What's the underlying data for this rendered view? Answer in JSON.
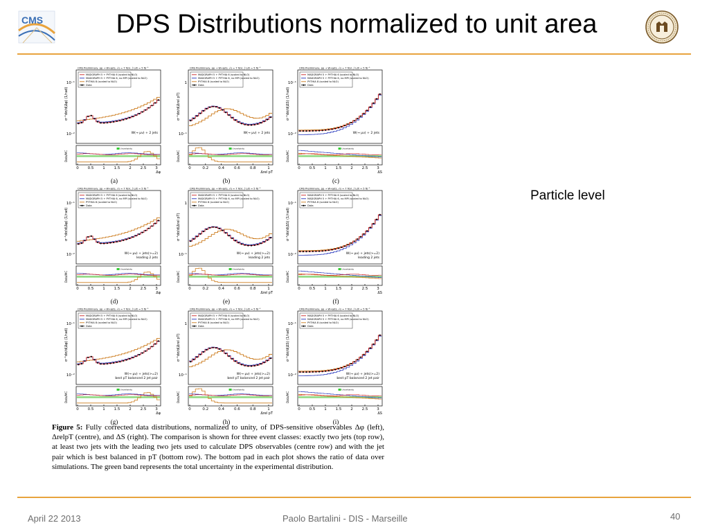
{
  "title": "DPS Distributions normalized to unit area",
  "side_note": "Particle level",
  "footer": {
    "date": "April 22 2013",
    "center": "Paolo Bartalini - DIS - Marseille",
    "page": "40"
  },
  "logos": {
    "left_text": "CMS",
    "colors": {
      "accent": "#e8a33d",
      "cms_blue": "#3a6fb5"
    }
  },
  "caption": {
    "label": "Figure 5:",
    "text": "Fully corrected data distributions, normalized to unity, of DPS-sensitive observables Δφ (left), ΔrelpT (centre), and ΔS (right). The comparison is shown for three event classes: exactly two jets (top row), at least two jets with the leading two jets used to calculate DPS observables (centre row) and with the jet pair which is best balanced in pT (bottom row). The bottom pad in each plot shows the ratio of data over simulations. The green band represents the total uncertainty in the experimental distribution."
  },
  "chart_data": [
    {
      "type": "line",
      "panel": "(a)",
      "kind": "dphi",
      "header": "CMS Preliminary,  pp → W+jets,  √s = 7 TeV,  ∫ Ldt = 5 fb⁻¹",
      "selection": "W(→ μν) + 2 jets",
      "xlabel": "Δφ",
      "ylabel": "σ⁻¹dσ/d(Δφ) (1/rad)",
      "ratio_label": "Data/MC",
      "xticks": [
        "0",
        "0.5",
        "1",
        "1.5",
        "2",
        "2.5",
        "3"
      ],
      "ymin_label": "10⁻²",
      "ymax_label": "10⁻¹",
      "legend": [
        "MADGRAPH 5 + PYTHIA 6 (scaled to NLO)",
        "MADGRAPH 5 + PYTHIA 6, no MPI (scaled to NLO)",
        "PYTHIA 8 (scaled to NLO)",
        "Data"
      ],
      "band": "Uncertainty"
    },
    {
      "type": "line",
      "panel": "(b)",
      "kind": "dpt",
      "header": "CMS Preliminary,  pp → W+jets,  √s = 7 TeV,  ∫ Ldt = 5 fb⁻¹",
      "selection": "W(→ μν) + 2 jets",
      "xlabel": "Δrel pT",
      "ylabel": "σ⁻¹dσ/d(Δrel pT)",
      "ratio_label": "Data/MC",
      "xticks": [
        "0",
        "0.2",
        "0.4",
        "0.6",
        "0.8",
        "1"
      ],
      "ymin_label": "10⁻¹",
      "ymax_label": "1",
      "legend": [
        "MADGRAPH 5 + PYTHIA 6 (scaled to NLO)",
        "MADGRAPH 5 + PYTHIA 6, no MPI (scaled to NLO)",
        "PYTHIA 8 (scaled to NLO)",
        "Data"
      ],
      "band": "Uncertainty"
    },
    {
      "type": "line",
      "panel": "(c)",
      "kind": "ds",
      "header": "CMS Preliminary,  pp → W+jets,  √s = 7 TeV,  ∫ Ldt = 5 fb⁻¹",
      "selection": "W(→ μν) + 2 jets",
      "xlabel": "ΔS",
      "ylabel": "σ⁻¹dσ/d(ΔS) (1/rad)",
      "ratio_label": "Data/MC",
      "xticks": [
        "0",
        "0.5",
        "1",
        "1.5",
        "2",
        "2.5",
        "3"
      ],
      "ymin_label": "10⁻²",
      "ymax_label": "10⁻¹",
      "legend": [
        "MADGRAPH 5 + PYTHIA 6 (scaled to NLO)",
        "MADGRAPH 5 + PYTHIA 6, no MPI (scaled to NLO)",
        "PYTHIA 8 (scaled to NLO)",
        "Data"
      ],
      "band": "Uncertainty"
    },
    {
      "type": "line",
      "panel": "(d)",
      "kind": "dphi",
      "header": "CMS Preliminary,  pp → W+jets,  √s = 7 TeV,  ∫ Ldt = 5 fb⁻¹",
      "selection": "W(→ μν) + jets(>=2)",
      "selection2": "leading 2 jets",
      "xlabel": "Δφ",
      "ylabel": "σ⁻¹dσ/d(Δφ) (1/rad)",
      "ratio_label": "Data/MC",
      "xticks": [
        "0",
        "0.5",
        "1",
        "1.5",
        "2",
        "2.5",
        "3"
      ],
      "ymin_label": "10⁻²",
      "ymax_label": "10⁻¹",
      "legend": [
        "MADGRAPH 5 + PYTHIA 6 (scaled to NLO)",
        "MADGRAPH 5 + PYTHIA 6, no MPI (scaled to NLO)",
        "PYTHIA 8 (scaled to NLO)",
        "Data"
      ],
      "band": "Uncertainty"
    },
    {
      "type": "line",
      "panel": "(e)",
      "kind": "dpt",
      "header": "CMS Preliminary,  pp → W+jets,  √s = 7 TeV,  ∫ Ldt = 5 fb⁻¹",
      "selection": "W(→ μν) + jets(>=2)",
      "selection2": "leading 2 jets",
      "xlabel": "Δrel pT",
      "ylabel": "σ⁻¹dσ/d(Δrel pT)",
      "ratio_label": "Data/MC",
      "xticks": [
        "0",
        "0.2",
        "0.4",
        "0.6",
        "0.8",
        "1"
      ],
      "ymin_label": "10⁻¹",
      "ymax_label": "1",
      "legend": [
        "MADGRAPH 5 + PYTHIA 6 (scaled to NLO)",
        "MADGRAPH 5 + PYTHIA 6, no MPI (scaled to NLO)",
        "PYTHIA 8 (scaled to NLO)",
        "Data"
      ],
      "band": "Uncertainty"
    },
    {
      "type": "line",
      "panel": "(f)",
      "kind": "ds",
      "header": "CMS Preliminary,  pp → W+jets,  √s = 7 TeV,  ∫ Ldt = 5 fb⁻¹",
      "selection": "W(→ μν) + jets(>=2)",
      "selection2": "leading 2 jets",
      "xlabel": "ΔS",
      "ylabel": "σ⁻¹dσ/d(ΔS) (1/rad)",
      "ratio_label": "Data/MC",
      "xticks": [
        "0",
        "0.5",
        "1",
        "1.5",
        "2",
        "2.5",
        "3"
      ],
      "ymin_label": "10⁻²",
      "ymax_label": "10⁻¹",
      "legend": [
        "MADGRAPH 5 + PYTHIA 6 (scaled to NLO)",
        "MADGRAPH 5 + PYTHIA 6, no MPI (scaled to NLO)",
        "PYTHIA 8 (scaled to NLO)",
        "Data"
      ],
      "band": "Uncertainty"
    },
    {
      "type": "line",
      "panel": "(g)",
      "kind": "dphi",
      "header": "CMS Preliminary,  pp → W+jets,  √s = 7 TeV,  ∫ Ldt = 5 fb⁻¹",
      "selection": "W(→ μν) + jets(>=2)",
      "selection2": "best pT balanced 2 jet pair",
      "xlabel": "Δφ",
      "ylabel": "σ⁻¹dσ/d(Δφ) (1/rad)",
      "ratio_label": "Data/MC",
      "xticks": [
        "0",
        "0.5",
        "1",
        "1.5",
        "2",
        "2.5",
        "3"
      ],
      "ymin_label": "10⁻²",
      "ymax_label": "10⁻¹",
      "legend": [
        "MADGRAPH 5 + PYTHIA 6 (scaled to NLO)",
        "MADGRAPH 5 + PYTHIA 6, no MPI (scaled to NLO)",
        "PYTHIA 8 (scaled to NLO)",
        "Data"
      ],
      "band": "Uncertainty"
    },
    {
      "type": "line",
      "panel": "(h)",
      "kind": "dpt",
      "header": "CMS Preliminary,  pp → W+jets,  √s = 7 TeV,  ∫ Ldt = 5 fb⁻¹",
      "selection": "W(→ μν) + jets(>=2)",
      "selection2": "best pT balanced 2 jet pair",
      "xlabel": "Δrel pT",
      "ylabel": "σ⁻¹dσ/d(Δrel pT)",
      "ratio_label": "Data/MC",
      "xticks": [
        "0",
        "0.2",
        "0.4",
        "0.6",
        "0.8",
        "1"
      ],
      "ymin_label": "10⁻¹",
      "ymax_label": "1",
      "legend": [
        "MADGRAPH 5 + PYTHIA 6 (scaled to NLO)",
        "MADGRAPH 5 + PYTHIA 6, no MPI (scaled to NLO)",
        "PYTHIA 8 (scaled to NLO)",
        "Data"
      ],
      "band": "Uncertainty"
    },
    {
      "type": "line",
      "panel": "(i)",
      "kind": "ds",
      "header": "CMS Preliminary,  pp → W+jets,  √s = 7 TeV,  ∫ Ldt = 5 fb⁻¹",
      "selection": "W(→ μν) + jets(>=2)",
      "selection2": "best pT balanced 2 jet pair",
      "xlabel": "ΔS",
      "ylabel": "σ⁻¹dσ/d(ΔS) (1/rad)",
      "ratio_label": "Data/MC",
      "xticks": [
        "0",
        "0.5",
        "1",
        "1.5",
        "2",
        "2.5",
        "3"
      ],
      "ymin_label": "10⁻²",
      "ymax_label": "10⁻¹",
      "legend": [
        "MADGRAPH 5 + PYTHIA 6 (scaled to NLO)",
        "MADGRAPH 5 + PYTHIA 6, no MPI (scaled to NLO)",
        "PYTHIA 8 (scaled to NLO)",
        "Data"
      ],
      "band": "Uncertainty"
    }
  ]
}
